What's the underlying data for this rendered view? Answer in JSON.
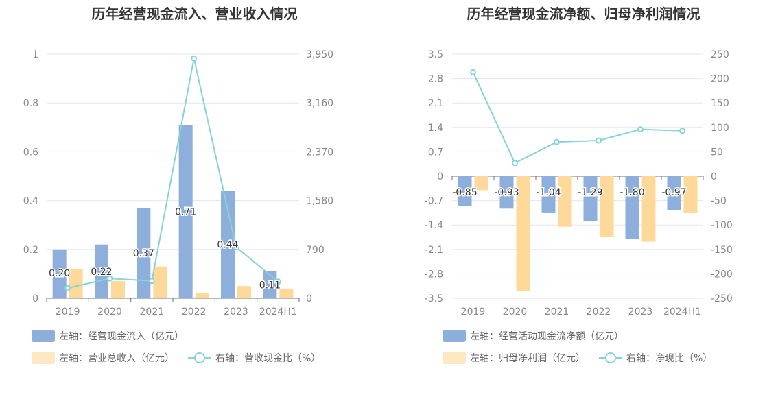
{
  "colors": {
    "bar_blue": "#8eaedc",
    "bar_orange": "#ffd99a",
    "bar_orange_legend": "#fde8c4",
    "line": "#86d3d8",
    "grid": "#e3e6ef",
    "axis_text": "#888888"
  },
  "chart_data": [
    {
      "type": "bar",
      "title": "历年经营现金流入、营业收入情况",
      "categories": [
        "2019",
        "2020",
        "2021",
        "2022",
        "2023",
        "2024H1"
      ],
      "left_axis": {
        "ticks": [
          "0",
          "0.2",
          "0.4",
          "0.6",
          "0.8",
          "1"
        ],
        "ylim": [
          0,
          1
        ]
      },
      "right_axis": {
        "ticks": [
          "0",
          "790",
          "1,580",
          "2,370",
          "3,160",
          "3,950"
        ],
        "ylim": [
          0,
          3950
        ]
      },
      "series": [
        {
          "name": "左轴：经营现金流入（亿元）",
          "kind": "bar",
          "axis": "left",
          "values": [
            0.2,
            0.22,
            0.37,
            0.71,
            0.44,
            0.11
          ],
          "labels": [
            "0.20",
            "0.22",
            "0.37",
            "0.71",
            "0.44",
            "0.11"
          ]
        },
        {
          "name": "左轴：营业总收入（亿元）",
          "kind": "bar",
          "axis": "left",
          "values": [
            0.12,
            0.07,
            0.13,
            0.02,
            0.05,
            0.04
          ]
        },
        {
          "name": "右轴：营收现金比（%）",
          "kind": "line",
          "axis": "right",
          "values": [
            165,
            320,
            280,
            3880,
            830,
            270
          ]
        }
      ],
      "legend": [
        {
          "label": "左轴：经营现金流入（亿元）",
          "kind": "bar-blue"
        },
        {
          "label": "左轴：营业总收入（亿元）",
          "kind": "bar-orange"
        },
        {
          "label": "右轴：营收现金比（%）",
          "kind": "line"
        }
      ]
    },
    {
      "type": "bar",
      "title": "历年经营现金流净额、归母净利润情况",
      "categories": [
        "2019",
        "2020",
        "2021",
        "2022",
        "2023",
        "2024H1"
      ],
      "left_axis": {
        "ticks": [
          "-3.5",
          "-2.8",
          "-2.1",
          "-1.4",
          "-0.7",
          "0",
          "0.7",
          "1.4",
          "2.1",
          "2.8",
          "3.5"
        ],
        "ylim": [
          -3.5,
          3.5
        ]
      },
      "right_axis": {
        "ticks": [
          "-250",
          "-200",
          "-150",
          "-100",
          "-50",
          "0",
          "50",
          "100",
          "150",
          "200",
          "250"
        ],
        "ylim": [
          -250,
          250
        ]
      },
      "series": [
        {
          "name": "左轴：经营活动现金流净额（亿元）",
          "kind": "bar",
          "axis": "left",
          "values": [
            -0.85,
            -0.93,
            -1.04,
            -1.29,
            -1.8,
            -0.97
          ],
          "labels": [
            "-0.85",
            "-0.93",
            "-1.04",
            "-1.29",
            "-1.80",
            "-0.97"
          ]
        },
        {
          "name": "左轴：归母净利润（亿元）",
          "kind": "bar",
          "axis": "left",
          "values": [
            -0.4,
            -3.3,
            -1.45,
            -1.75,
            -1.88,
            -1.05
          ]
        },
        {
          "name": "右轴：净现比（%）",
          "kind": "line",
          "axis": "right",
          "values": [
            213,
            27,
            70,
            73,
            96,
            93
          ]
        }
      ],
      "legend": [
        {
          "label": "左轴：经营活动现金流净额（亿元）",
          "kind": "bar-blue"
        },
        {
          "label": "左轴：归母净利润（亿元）",
          "kind": "bar-orange"
        },
        {
          "label": "右轴：净现比（%）",
          "kind": "line"
        }
      ]
    }
  ]
}
